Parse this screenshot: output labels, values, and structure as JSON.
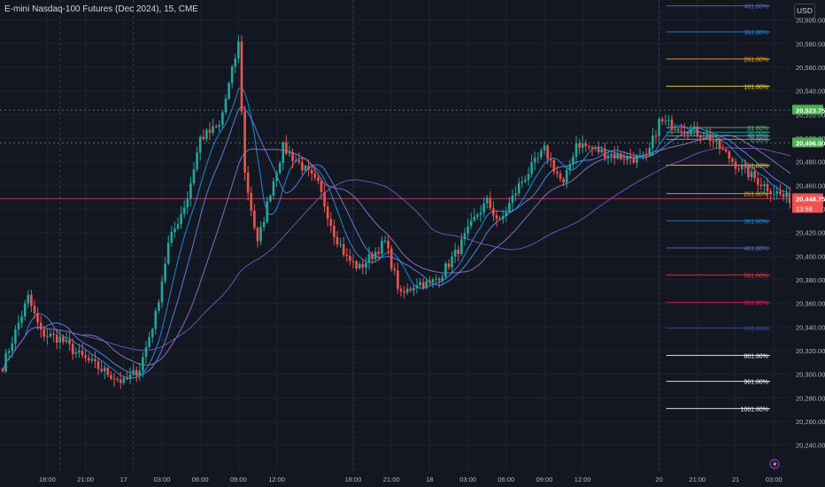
{
  "header": {
    "title": "E-mini Nasdaq-100 Futures (Dec 2024), 15, CME",
    "currency_button": "USD"
  },
  "colors": {
    "background": "#131722",
    "grid": "#1f2330",
    "up": "#26a69a",
    "down": "#ef5350",
    "axis_text": "#b2b5be",
    "price_badge_green": "#4caf50",
    "price_badge_red": "#ef5350"
  },
  "chart_data": {
    "type": "candlestick",
    "ylim": [
      20218,
      20617
    ],
    "y_ticks": [
      "20,240.00",
      "20,260.00",
      "20,280.00",
      "20,300.00",
      "20,320.00",
      "20,340.00",
      "20,360.00",
      "20,380.00",
      "20,400.00",
      "20,420.00",
      "20,440.00",
      "20,460.00",
      "20,480.00",
      "20,500.00",
      "20,520.00",
      "20,540.00",
      "20,560.00",
      "20,580.00",
      "20,600.00"
    ],
    "x_labels": [
      "18:00",
      "21:00",
      "17",
      "03:00",
      "06:00",
      "09:00",
      "12:00",
      "18:00",
      "21:00",
      "18",
      "03:00",
      "06:00",
      "09:00",
      "12:00",
      "20",
      "21:00",
      "21",
      "03:00"
    ],
    "x_label_index": [
      14,
      26,
      38,
      50,
      62,
      74,
      86,
      110,
      122,
      134,
      146,
      158,
      170,
      182,
      206,
      218,
      230,
      242
    ],
    "session_breaks": [
      18,
      41,
      110,
      206
    ],
    "candle_count": 250,
    "anchors": [
      [
        0,
        20307
      ],
      [
        8,
        20365
      ],
      [
        12,
        20335
      ],
      [
        18,
        20330
      ],
      [
        24,
        20316
      ],
      [
        31,
        20304
      ],
      [
        38,
        20293
      ],
      [
        43,
        20305
      ],
      [
        48,
        20350
      ],
      [
        52,
        20410
      ],
      [
        58,
        20450
      ],
      [
        62,
        20500
      ],
      [
        68,
        20510
      ],
      [
        74,
        20580
      ],
      [
        76,
        20470
      ],
      [
        80,
        20410
      ],
      [
        84,
        20455
      ],
      [
        88,
        20492
      ],
      [
        94,
        20476
      ],
      [
        99,
        20460
      ],
      [
        104,
        20420
      ],
      [
        108,
        20398
      ],
      [
        112,
        20390
      ],
      [
        120,
        20412
      ],
      [
        125,
        20366
      ],
      [
        130,
        20378
      ],
      [
        134,
        20376
      ],
      [
        138,
        20386
      ],
      [
        143,
        20406
      ],
      [
        149,
        20436
      ],
      [
        152,
        20446
      ],
      [
        156,
        20428
      ],
      [
        162,
        20460
      ],
      [
        170,
        20490
      ],
      [
        176,
        20460
      ],
      [
        180,
        20496
      ],
      [
        186,
        20490
      ],
      [
        194,
        20484
      ],
      [
        202,
        20482
      ],
      [
        206,
        20514
      ],
      [
        212,
        20510
      ],
      [
        218,
        20505
      ],
      [
        222,
        20500
      ],
      [
        230,
        20478
      ],
      [
        240,
        20458
      ],
      [
        246,
        20449
      ]
    ],
    "moving_averages": [
      {
        "color": "#2196f3",
        "period": 8
      },
      {
        "color": "#5b8def",
        "period": 14
      },
      {
        "color": "#9575cd",
        "period": 26
      },
      {
        "color": "#7e57c2",
        "period": 60
      }
    ],
    "horizontal_levels": [
      {
        "price": 20523.75,
        "label": "20,523.75",
        "style": "dotted",
        "color": "#4caf50",
        "badge": "#4caf50"
      },
      {
        "price": 20496.0,
        "label": "20,496.00",
        "style": "dotted",
        "color": "#4caf50",
        "badge": "#4caf50"
      },
      {
        "price": 20448.75,
        "label": "20,448.75",
        "style": "solid",
        "color": "#ef5350",
        "badge": "#ef5350",
        "sub": "13:58"
      }
    ],
    "fib_levels": [
      {
        "label": "461.80%",
        "price": 20612,
        "color": "#5c6bc0"
      },
      {
        "label": "361.80%",
        "price": 20590,
        "color": "#1e88e5"
      },
      {
        "label": "261.80%",
        "price": 20567,
        "color": "#f9a825"
      },
      {
        "label": "161.80%",
        "price": 20544,
        "color": "#fdd835"
      },
      {
        "label": "61.80%",
        "price": 20509,
        "color": "#66bb6a"
      },
      {
        "label": "50.00%",
        "price": 20505,
        "color": "#26a69a"
      },
      {
        "label": "38.20%",
        "price": 20502,
        "color": "#4db6ac"
      },
      {
        "label": "0.00%",
        "price": 20499,
        "color": "#9e9e9e"
      },
      {
        "label": "161.80%",
        "price": 20477,
        "color": "#fdd835"
      },
      {
        "label": "261.80%",
        "price": 20453,
        "color": "#f9a825"
      },
      {
        "label": "361.80%",
        "price": 20430,
        "color": "#1e88e5"
      },
      {
        "label": "461.80%",
        "price": 20407,
        "color": "#5c6bc0"
      },
      {
        "label": "561.80%",
        "price": 20384,
        "color": "#e53935"
      },
      {
        "label": "661.80%",
        "price": 20361,
        "color": "#d81b60"
      },
      {
        "label": "761.80%",
        "price": 20339,
        "color": "#3949ab"
      },
      {
        "label": "861.80%",
        "price": 20316,
        "color": "#ffffff"
      },
      {
        "label": "961.80%",
        "price": 20294,
        "color": "#ffffff"
      },
      {
        "label": "1061.80%",
        "price": 20271,
        "color": "#ffffff"
      }
    ]
  }
}
